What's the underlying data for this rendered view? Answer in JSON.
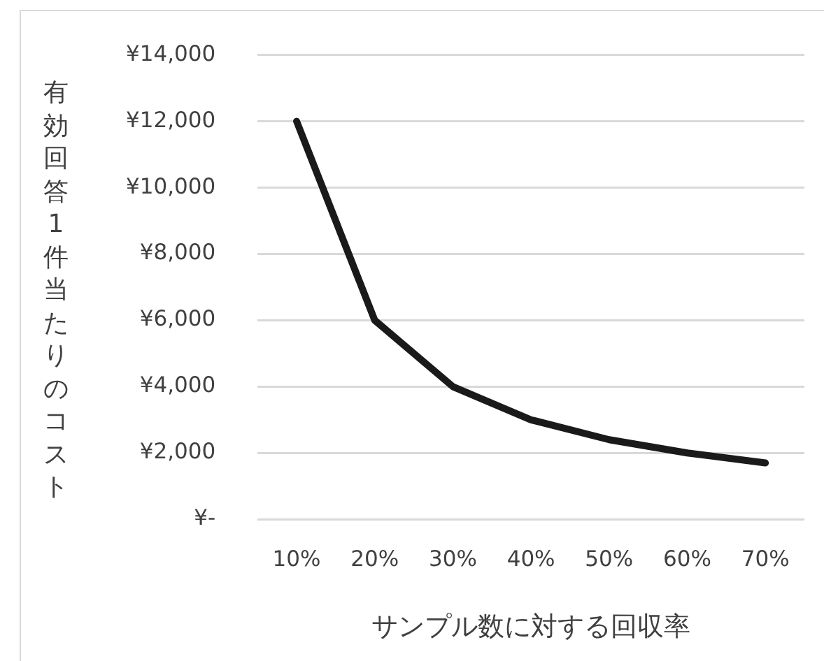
{
  "chart_data": {
    "type": "line",
    "xlabel": "サンプル数に対する回収率",
    "ylabel": "有効回答1件当たりのコスト",
    "categories": [
      "10%",
      "20%",
      "30%",
      "40%",
      "50%",
      "60%",
      "70%"
    ],
    "series": [
      {
        "color": "#1a1a1a",
        "values": [
          12000,
          6000,
          4000,
          3000,
          2400,
          2000,
          1700
        ]
      }
    ],
    "ylim": [
      0,
      14000
    ],
    "yticks": [
      {
        "value": 0,
        "label": "¥-"
      },
      {
        "value": 2000,
        "label": "¥2,000"
      },
      {
        "value": 4000,
        "label": "¥4,000"
      },
      {
        "value": 6000,
        "label": "¥6,000"
      },
      {
        "value": 8000,
        "label": "¥8,000"
      },
      {
        "value": 10000,
        "label": "¥10,000"
      },
      {
        "value": 12000,
        "label": "¥12,000"
      },
      {
        "value": 14000,
        "label": "¥14,000"
      }
    ],
    "grid": "y",
    "legend": false,
    "marker": "none",
    "line_style": "solid"
  }
}
